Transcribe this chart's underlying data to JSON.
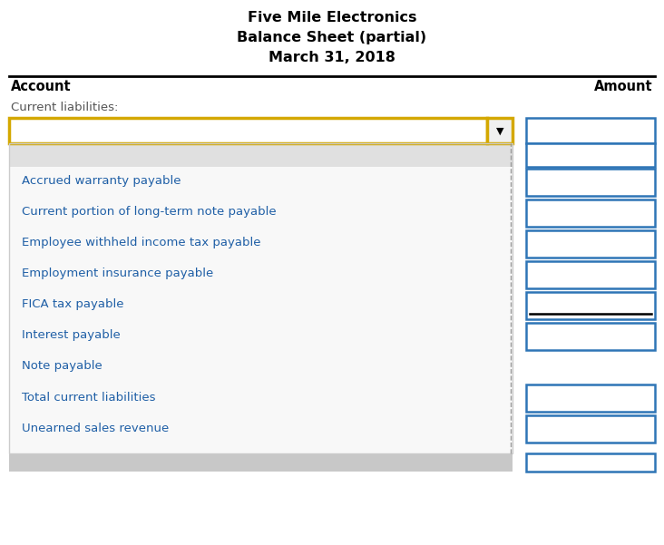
{
  "title1": "Five Mile Electronics",
  "title2": "Balance Sheet (partial)",
  "title3": "March 31, 2018",
  "col_account": "Account",
  "col_amount": "Amount",
  "section_label": "Current liabilities:",
  "dropdown_items": [
    "Accrued warranty payable",
    "Current portion of long-term note payable",
    "Employee withheld income tax payable",
    "Employment insurance payable",
    "FICA tax payable",
    "Interest payable",
    "Note payable",
    "Total current liabilities",
    "Unearned sales revenue"
  ],
  "has_input_box": [
    true,
    true,
    true,
    true,
    true,
    true,
    false,
    true,
    true
  ],
  "bg_color": "#ffffff",
  "header_line_color": "#000000",
  "dropdown_border_color": "#d4a800",
  "input_border_color": "#2e75b6",
  "text_blue": "#1f5fa6",
  "text_dark": "#555555",
  "text_black": "#000000",
  "underline_row_idx": 4,
  "title_fontsize": 11.5,
  "header_fontsize": 10.5,
  "body_fontsize": 9.5,
  "section_fontsize": 9.5
}
